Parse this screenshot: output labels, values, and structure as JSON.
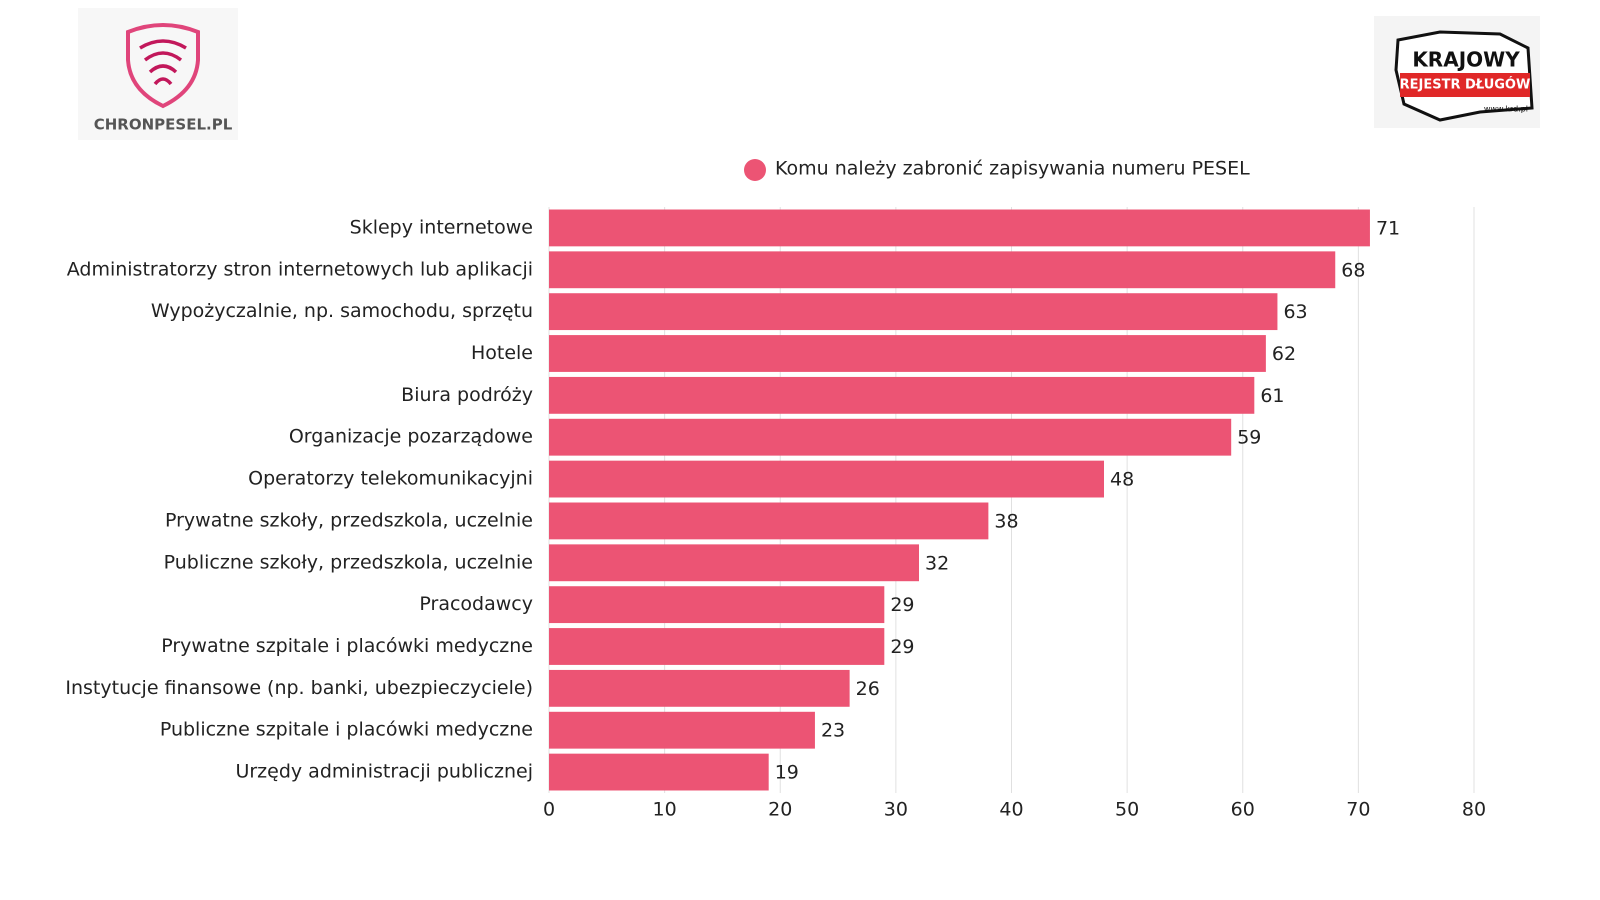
{
  "logos": {
    "left": "CHRONPESEL.PL",
    "right_title": "KRAJOWY",
    "right_subtitle": "REJESTR DŁUGÓW",
    "right_url": "www.krd.pl"
  },
  "chart_data": {
    "type": "barh",
    "categories": [
      "Sklepy internetowe",
      "Administratorzy stron internetowych lub aplikacji",
      "Wypożyczalnie, np. samochodu, sprzętu",
      "Hotele",
      "Biura podróży",
      "Organizacje pozarządowe",
      "Operatorzy telekomunikacyjni",
      "Prywatne szkoły, przedszkola, uczelnie",
      "Publiczne szkoły, przedszkola, uczelnie",
      "Pracodawcy",
      "Prywatne szpitale i placówki medyczne",
      "Instytucje finansowe (np. banki, ubezpieczyciele)",
      "Publiczne szpitale i placówki medyczne",
      "Urzędy administracji publicznej"
    ],
    "series": [
      {
        "name": "Komu należy zabronić zapisywania numeru PESEL",
        "color": "#ec5474",
        "values": [
          71,
          68,
          63,
          62,
          61,
          59,
          48,
          38,
          32,
          29,
          29,
          26,
          23,
          19
        ]
      }
    ],
    "xlim": [
      0,
      80
    ],
    "xticks": [
      0,
      10,
      20,
      30,
      40,
      50,
      60,
      70,
      80
    ],
    "grid": true,
    "legend": "top"
  }
}
